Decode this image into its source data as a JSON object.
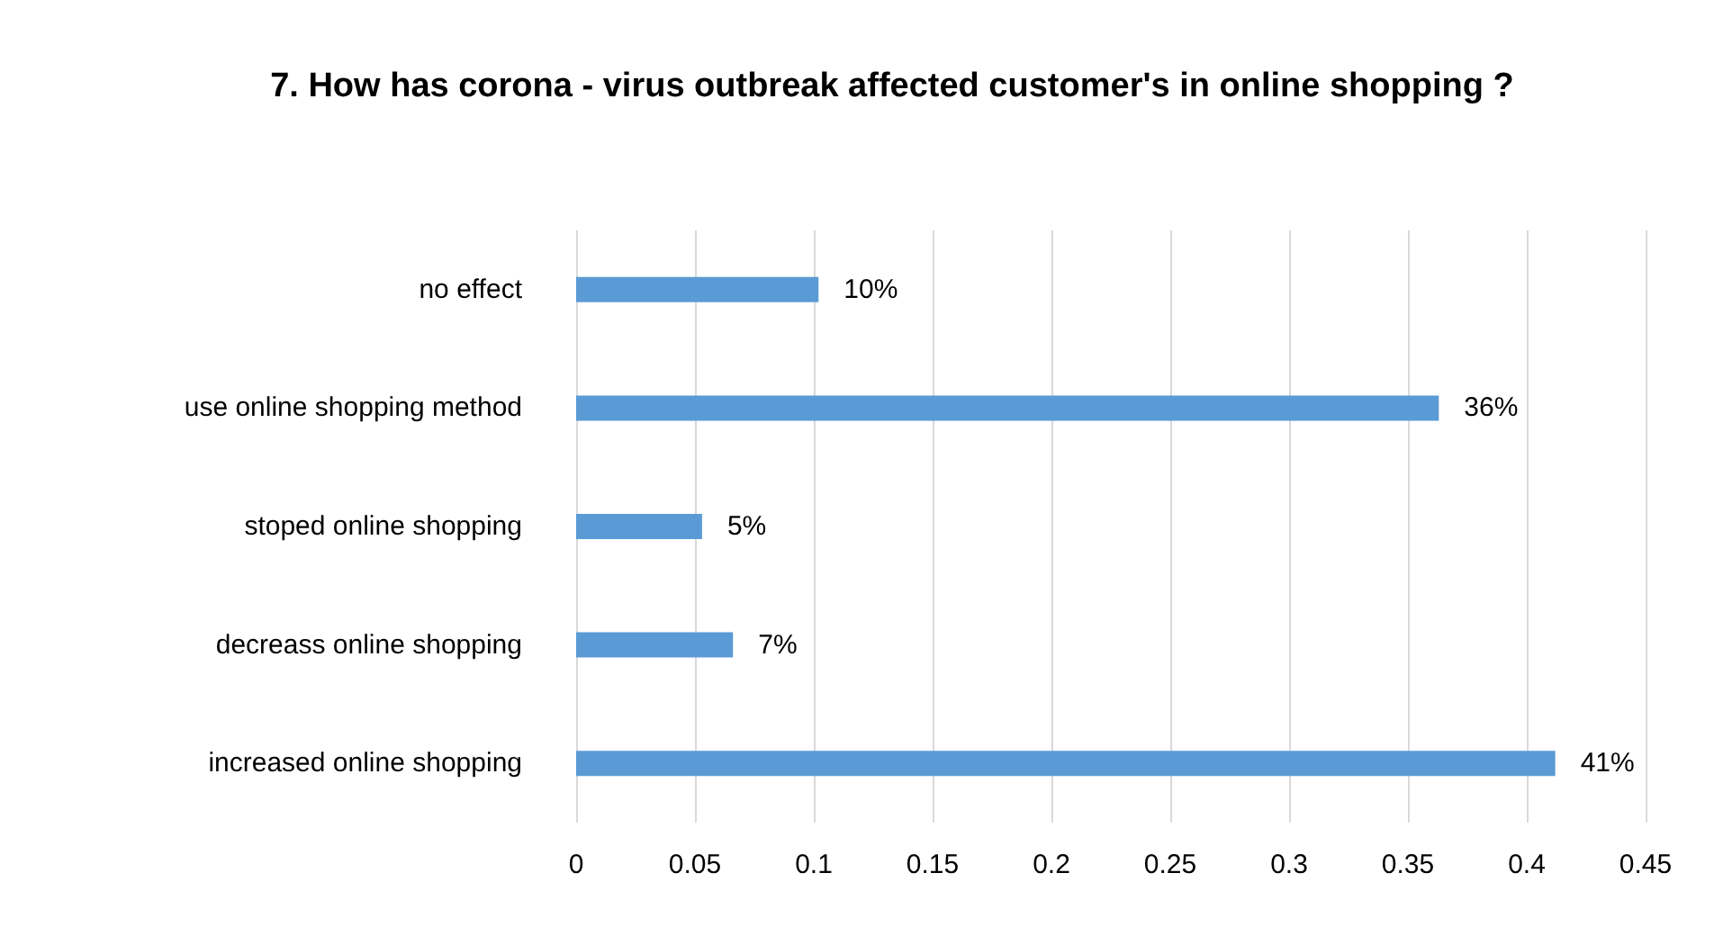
{
  "chart_data": {
    "type": "bar",
    "orientation": "horizontal",
    "title": "7. How has corona - virus outbreak affected customer's in online shopping ?",
    "categories": [
      "no effect",
      "use online shopping method",
      "stoped online shopping",
      "decreass online shopping",
      "increased online shopping"
    ],
    "values": [
      0.102,
      0.363,
      0.053,
      0.066,
      0.412
    ],
    "value_labels": [
      "10%",
      "36%",
      "5%",
      "7%",
      "41%"
    ],
    "color": "#5b9bd5",
    "xlim": [
      0,
      0.45
    ],
    "xticks": [
      0,
      0.05,
      0.1,
      0.15,
      0.2,
      0.25,
      0.3,
      0.35,
      0.4,
      0.45
    ],
    "grid": "x"
  }
}
